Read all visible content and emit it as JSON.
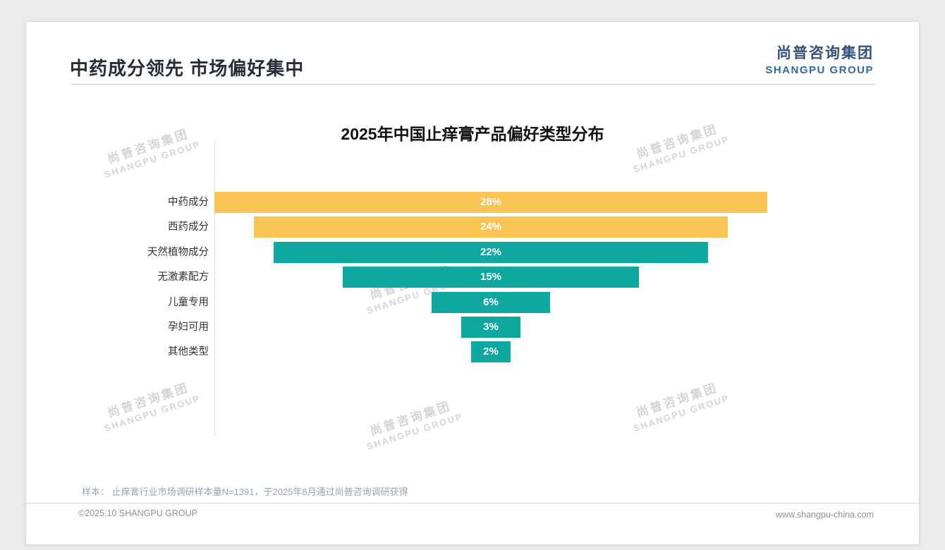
{
  "page": {
    "header": {
      "title": "中药成分领先 市场偏好集中",
      "logo_cn": "尚普咨询集团",
      "logo_en": "SHANGPU GROUP"
    },
    "note": "样本： 止痒膏行业市场调研样本量N=1391，于2025年8月通过尚普咨询调研获得",
    "footer": {
      "copyright": "©2025.10 SHANGPU GROUP",
      "website": "www.shangpu-china.com"
    },
    "watermark": {
      "line1": "尚普咨询集团",
      "line2": "SHANGPU GROUP"
    }
  },
  "chart_data": {
    "type": "bar",
    "variant": "centered-funnel-horizontal-bars",
    "title": "2025年中国止痒膏产品偏好类型分布",
    "categories": [
      "中药成分",
      "西药成分",
      "天然植物成分",
      "无激素配方",
      "儿童专用",
      "孕妇可用",
      "其他类型"
    ],
    "values": [
      28,
      24,
      22,
      15,
      6,
      3,
      2
    ],
    "value_labels": [
      "28%",
      "24%",
      "22%",
      "15%",
      "6%",
      "3%",
      "2%"
    ],
    "unit": "%",
    "bar_colors": [
      "#F8C453",
      "#F8C453",
      "#0FA8A0",
      "#0FA8A0",
      "#0FA8A0",
      "#0FA8A0",
      "#0FA8A0"
    ],
    "value_label_color": "#ffffff",
    "xlim": [
      0,
      28
    ],
    "grid": false,
    "legend": "none"
  }
}
